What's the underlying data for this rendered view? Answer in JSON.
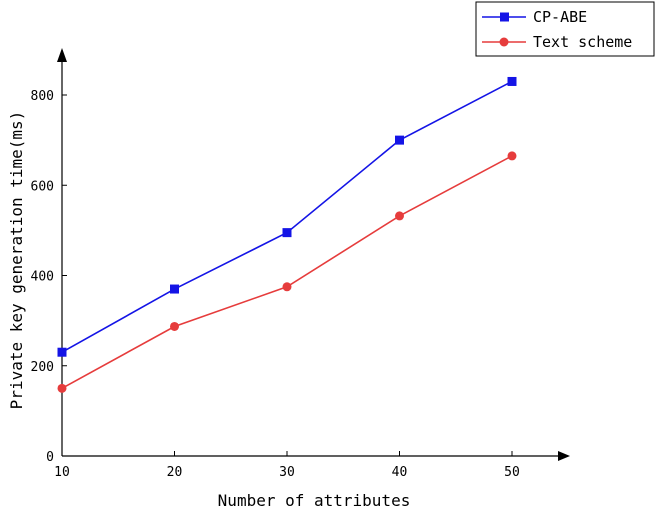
{
  "chart_data": {
    "type": "line",
    "title": "",
    "xlabel": "Number of attributes",
    "ylabel": "Private key generation time(ms)",
    "x": [
      10,
      20,
      30,
      40,
      50
    ],
    "x_ticks": [
      "10",
      "20",
      "30",
      "40",
      "50"
    ],
    "y_ticks": [
      "0",
      "200",
      "400",
      "600",
      "800"
    ],
    "xlim": [
      10,
      50
    ],
    "ylim": [
      0,
      800
    ],
    "grid": false,
    "legend_position": "top-right",
    "series": [
      {
        "name": "CP-ABE",
        "values": [
          230,
          370,
          495,
          700,
          830
        ],
        "color": "#1414e6",
        "marker": "square"
      },
      {
        "name": "Text scheme",
        "values": [
          150,
          287,
          375,
          532,
          665
        ],
        "color": "#e63c3c",
        "marker": "circle"
      }
    ]
  }
}
